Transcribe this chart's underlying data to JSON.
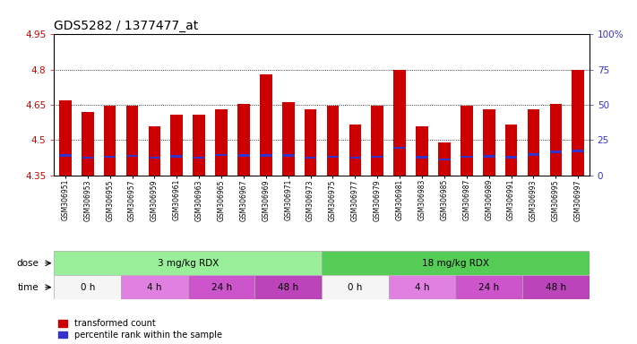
{
  "title": "GDS5282 / 1377477_at",
  "samples": [
    "GSM306951",
    "GSM306953",
    "GSM306955",
    "GSM306957",
    "GSM306959",
    "GSM306961",
    "GSM306963",
    "GSM306965",
    "GSM306967",
    "GSM306969",
    "GSM306971",
    "GSM306973",
    "GSM306975",
    "GSM306977",
    "GSM306979",
    "GSM306981",
    "GSM306983",
    "GSM306985",
    "GSM306987",
    "GSM306989",
    "GSM306991",
    "GSM306993",
    "GSM306995",
    "GSM306997"
  ],
  "bar_heights": [
    4.67,
    4.62,
    4.645,
    4.645,
    4.56,
    4.61,
    4.61,
    4.63,
    4.655,
    4.78,
    4.66,
    4.63,
    4.645,
    4.565,
    4.645,
    4.8,
    4.56,
    4.49,
    4.645,
    4.63,
    4.565,
    4.63,
    4.655,
    4.8
  ],
  "blue_markers": [
    4.435,
    4.425,
    4.43,
    4.433,
    4.425,
    4.432,
    4.425,
    4.437,
    4.436,
    4.435,
    4.436,
    4.425,
    4.43,
    4.425,
    4.43,
    4.468,
    4.428,
    4.418,
    4.43,
    4.432,
    4.428,
    4.44,
    4.45,
    4.455
  ],
  "bar_bottom": 4.35,
  "ylim_left": [
    4.35,
    4.95
  ],
  "ylim_right": [
    0,
    100
  ],
  "yticks_left": [
    4.35,
    4.5,
    4.65,
    4.8,
    4.95
  ],
  "ytick_labels_left": [
    "4.35",
    "4.5",
    "4.65",
    "4.8",
    "4.95"
  ],
  "yticks_right": [
    0,
    25,
    50,
    75,
    100
  ],
  "ytick_labels_right": [
    "0",
    "25",
    "50",
    "75",
    "100%"
  ],
  "hlines": [
    4.5,
    4.65,
    4.8
  ],
  "bar_color": "#cc0000",
  "blue_color": "#3333cc",
  "bar_width": 0.55,
  "dose_groups": [
    {
      "label": "3 mg/kg RDX",
      "start": 0,
      "end": 12,
      "color": "#99ee99"
    },
    {
      "label": "18 mg/kg RDX",
      "start": 12,
      "end": 24,
      "color": "#55cc55"
    }
  ],
  "time_groups": [
    {
      "label": "0 h",
      "start": 0,
      "end": 3,
      "color": "#f5f5f5"
    },
    {
      "label": "4 h",
      "start": 3,
      "end": 6,
      "color": "#e080e0"
    },
    {
      "label": "24 h",
      "start": 6,
      "end": 9,
      "color": "#cc55cc"
    },
    {
      "label": "48 h",
      "start": 9,
      "end": 12,
      "color": "#bb44bb"
    },
    {
      "label": "0 h",
      "start": 12,
      "end": 15,
      "color": "#f5f5f5"
    },
    {
      "label": "4 h",
      "start": 15,
      "end": 18,
      "color": "#e080e0"
    },
    {
      "label": "24 h",
      "start": 18,
      "end": 21,
      "color": "#cc55cc"
    },
    {
      "label": "48 h",
      "start": 21,
      "end": 24,
      "color": "#bb44bb"
    }
  ],
  "legend_items": [
    {
      "label": "transformed count",
      "color": "#cc0000"
    },
    {
      "label": "percentile rank within the sample",
      "color": "#3333cc"
    }
  ],
  "bg_color": "#ffffff",
  "plot_bg_color": "#ffffff",
  "title_color": "#000000",
  "ylabel_left_color": "#cc0000",
  "ylabel_right_color": "#3333cc"
}
